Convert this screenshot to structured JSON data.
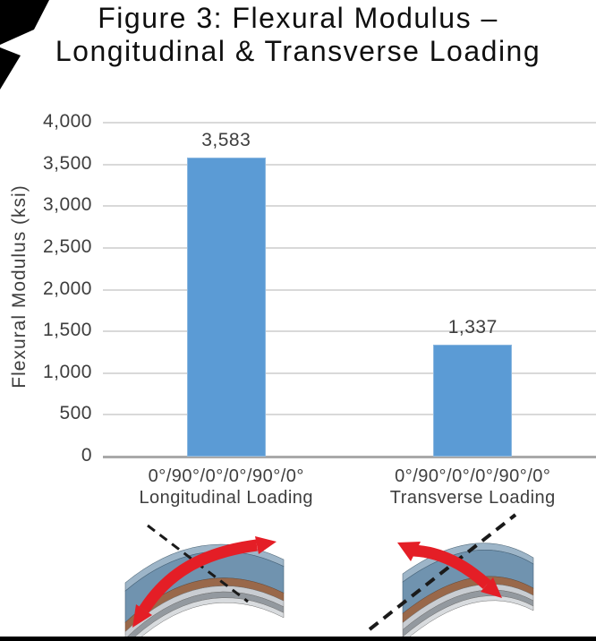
{
  "page": {
    "title_line1": "Figure 3: Flexural Modulus –",
    "title_line2": "Longitudinal & Transverse Loading"
  },
  "chart_data": {
    "type": "bar",
    "title": "Figure 3: Flexural Modulus – Longitudinal & Transverse Loading",
    "xlabel": "",
    "ylabel": "Flexural Modulus (ksi)",
    "ylim": [
      0,
      4000
    ],
    "ytick_step": 500,
    "ytick_labels": [
      "0",
      "500",
      "1,000",
      "1,500",
      "2,000",
      "2,500",
      "3,000",
      "3,500",
      "4,000"
    ],
    "grid": true,
    "legend": "none",
    "categories": [
      "0°/90°/0°/0°/90°/0°\nLongitudinal Loading",
      "0°/90°/0°/0°/90°/0°\nTransverse Loading"
    ],
    "values": [
      3583,
      1337
    ],
    "value_labels": [
      "3,583",
      "1,337"
    ],
    "bar_color": "#5B9BD5"
  },
  "icons": {
    "left_illustration": "laminate-longitudinal-bend-arrow-diagram",
    "right_illustration": "laminate-transverse-bend-arrow-diagram",
    "corner_artifact": "black-corner-scan-artifact",
    "bottom_bar": "black-page-edge-bar"
  },
  "colors": {
    "bar": "#5B9BD5",
    "bar_border": "#8CB8E0",
    "gridline": "#D9D9D9",
    "axis_line": "#A9A9A9",
    "label_text": "#3E3E3E",
    "title_text": "#0F0F0F",
    "arrow_red": "#E41E26",
    "laminate_blue_face": "#7093AF",
    "laminate_blue_top": "#9DB5C8",
    "laminate_brown": "#99684A"
  }
}
